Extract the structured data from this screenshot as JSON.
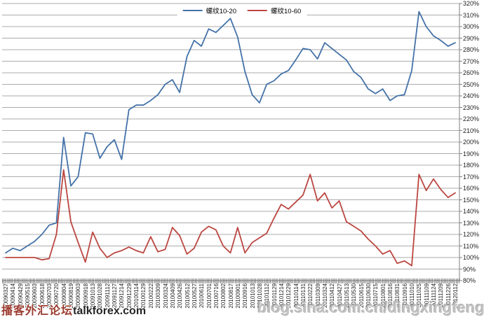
{
  "chart_data": {
    "type": "line",
    "title": "",
    "xlabel": "",
    "ylabel": "",
    "grid": true,
    "legend_position": "top-center",
    "ylim": [
      80,
      320
    ],
    "y_tick_step": 10,
    "y_tick_labels": [
      "320%",
      "310%",
      "300%",
      "290%",
      "280%",
      "270%",
      "260%",
      "250%",
      "240%",
      "230%",
      "220%",
      "210%",
      "200%",
      "190%",
      "180%",
      "170%",
      "160%",
      "150%",
      "140%",
      "130%",
      "120%",
      "110%",
      "100%",
      "90%",
      "80%"
    ],
    "grid_color": "#ababab",
    "axis_color": "#7f7f7f",
    "categories": [
      "20090327",
      "20090414",
      "20090429",
      "20090515",
      "20090603",
      "20090618",
      "20090703",
      "20090720",
      "20090804",
      "20090819",
      "20090903",
      "20090918",
      "20091013",
      "20091028",
      "20091112",
      "20091127",
      "20091214",
      "20091229",
      "20100114",
      "20100129",
      "20100222",
      "20100309",
      "20100324",
      "20100409",
      "20100426",
      "20100512",
      "20100527",
      "20100611",
      "20100701",
      "20100716",
      "20100802",
      "20100817",
      "20100901",
      "20100916",
      "20101013",
      "20101028",
      "20101112",
      "20101129",
      "20101214",
      "20101229",
      "20110114",
      "20110131",
      "20110222",
      "20110309",
      "20110324",
      "20110412",
      "20110427",
      "20110513",
      "20110530",
      "20110615",
      "20110630",
      "20110715",
      "20110801",
      "20110816",
      "20110831",
      "20110916",
      "20111010",
      "20111025",
      "20111109",
      "20111124",
      "20111209",
      "20111226",
      "20120112"
    ],
    "series": [
      {
        "name": "螺纹10-20",
        "color": "#4472a8",
        "unit": "%",
        "values": [
          104,
          108,
          106,
          110,
          114,
          120,
          128,
          130,
          204,
          162,
          170,
          208,
          207,
          186,
          196,
          202,
          185,
          228,
          232,
          232,
          236,
          241,
          250,
          254,
          243,
          274,
          288,
          283,
          298,
          295,
          301,
          307,
          291,
          261,
          241,
          234,
          250,
          253,
          259,
          262,
          271,
          281,
          280,
          272,
          286,
          281,
          276,
          271,
          261,
          256,
          246,
          242,
          246,
          236,
          240,
          241,
          262,
          313,
          300,
          292,
          288,
          283,
          286
        ]
      },
      {
        "name": "螺纹10-60",
        "color": "#bb4641",
        "unit": "%",
        "values": [
          100,
          100,
          100,
          100,
          100,
          98,
          99,
          120,
          176,
          131,
          113,
          96,
          122,
          108,
          100,
          104,
          106,
          109,
          106,
          104,
          118,
          105,
          107,
          126,
          119,
          103,
          108,
          122,
          127,
          124,
          110,
          104,
          126,
          104,
          113,
          117,
          121,
          134,
          146,
          142,
          148,
          154,
          172,
          149,
          156,
          143,
          149,
          131,
          127,
          123,
          116,
          110,
          103,
          106,
          95,
          97,
          93,
          172,
          158,
          168,
          159,
          152,
          156
        ]
      }
    ]
  },
  "watermarks": {
    "left_cn": "播客外汇论坛",
    "left_latin": "talkforex.com",
    "right": "blog.sina.com.cn/dingxingfengzi"
  }
}
